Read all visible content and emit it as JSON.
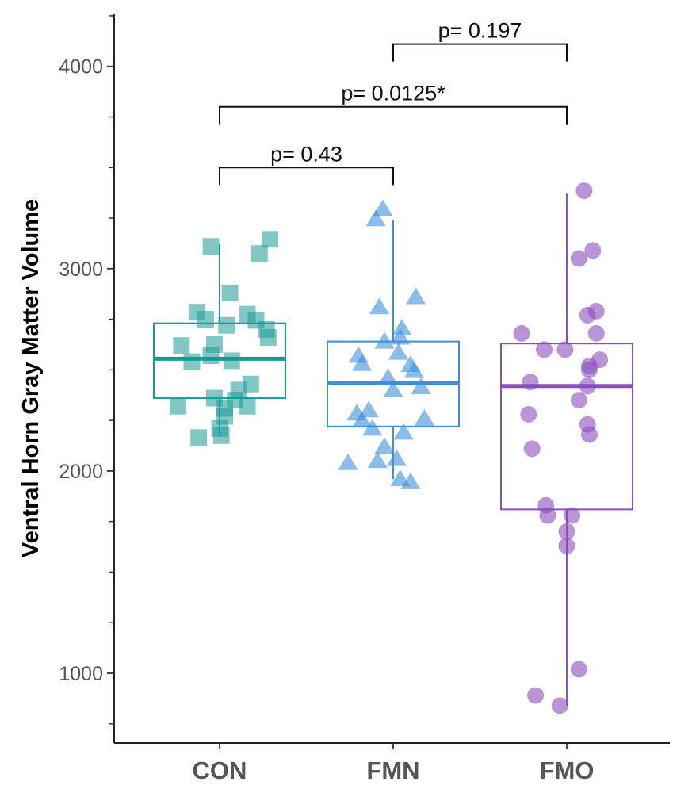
{
  "chart_data": {
    "type": "box",
    "title": "",
    "xlabel": "",
    "ylabel": "Ventral Horn Gray Matter Volume",
    "ylim": [
      670,
      4270
    ],
    "yticks": [
      1000,
      2000,
      3000,
      4000
    ],
    "yticks_minor": [
      750,
      1250,
      1500,
      1750,
      2250,
      2500,
      2750,
      3250,
      3500,
      3750,
      4250
    ],
    "categories": [
      "CON",
      "FMN",
      "FMO"
    ],
    "groups": [
      {
        "category": "CON",
        "color": "#1a9a96",
        "marker": "square",
        "box": {
          "whisker_low": 2170,
          "q1": 2360,
          "median": 2555,
          "q3": 2730,
          "whisker_high": 3120
        },
        "points": [
          {
            "x": 0.95,
            "y": 3110
          },
          {
            "x": 1.29,
            "y": 3145
          },
          {
            "x": 1.23,
            "y": 3075
          },
          {
            "x": 1.06,
            "y": 2880
          },
          {
            "x": 0.87,
            "y": 2785
          },
          {
            "x": 1.16,
            "y": 2775
          },
          {
            "x": 0.92,
            "y": 2750
          },
          {
            "x": 1.04,
            "y": 2720
          },
          {
            "x": 1.21,
            "y": 2745
          },
          {
            "x": 1.27,
            "y": 2700
          },
          {
            "x": 1.28,
            "y": 2660
          },
          {
            "x": 0.97,
            "y": 2625
          },
          {
            "x": 0.78,
            "y": 2620
          },
          {
            "x": 0.95,
            "y": 2570
          },
          {
            "x": 1.07,
            "y": 2545
          },
          {
            "x": 0.84,
            "y": 2540
          },
          {
            "x": 1.18,
            "y": 2430
          },
          {
            "x": 1.11,
            "y": 2400
          },
          {
            "x": 1.09,
            "y": 2350
          },
          {
            "x": 0.97,
            "y": 2360
          },
          {
            "x": 1.03,
            "y": 2310
          },
          {
            "x": 0.76,
            "y": 2320
          },
          {
            "x": 1.16,
            "y": 2320
          },
          {
            "x": 1.03,
            "y": 2270
          },
          {
            "x": 1.0,
            "y": 2210
          },
          {
            "x": 0.88,
            "y": 2165
          },
          {
            "x": 1.01,
            "y": 2175
          }
        ]
      },
      {
        "category": "FMN",
        "color": "#3d8fdc",
        "marker": "triangle",
        "box": {
          "whisker_low": 1960,
          "q1": 2220,
          "median": 2435,
          "q3": 2640,
          "whisker_high": 3240
        },
        "points": [
          {
            "x": 1.94,
            "y": 3295
          },
          {
            "x": 1.9,
            "y": 3245
          },
          {
            "x": 2.13,
            "y": 2860
          },
          {
            "x": 1.92,
            "y": 2810
          },
          {
            "x": 2.05,
            "y": 2705
          },
          {
            "x": 2.04,
            "y": 2660
          },
          {
            "x": 1.95,
            "y": 2640
          },
          {
            "x": 2.03,
            "y": 2585
          },
          {
            "x": 1.8,
            "y": 2570
          },
          {
            "x": 1.82,
            "y": 2530
          },
          {
            "x": 2.1,
            "y": 2525
          },
          {
            "x": 2.12,
            "y": 2495
          },
          {
            "x": 1.97,
            "y": 2460
          },
          {
            "x": 2.16,
            "y": 2415
          },
          {
            "x": 2.0,
            "y": 2400
          },
          {
            "x": 1.86,
            "y": 2300
          },
          {
            "x": 1.79,
            "y": 2285
          },
          {
            "x": 1.82,
            "y": 2250
          },
          {
            "x": 1.88,
            "y": 2210
          },
          {
            "x": 2.18,
            "y": 2260
          },
          {
            "x": 2.06,
            "y": 2190
          },
          {
            "x": 1.95,
            "y": 2120
          },
          {
            "x": 1.74,
            "y": 2040
          },
          {
            "x": 1.91,
            "y": 2050
          },
          {
            "x": 2.02,
            "y": 2060
          },
          {
            "x": 2.04,
            "y": 1960
          },
          {
            "x": 2.1,
            "y": 1945
          }
        ]
      },
      {
        "category": "FMO",
        "color": "#8a4fbe",
        "marker": "circle",
        "box": {
          "whisker_low": 840,
          "q1": 1810,
          "median": 2420,
          "q3": 2630,
          "whisker_high": 3370
        },
        "points": [
          {
            "x": 3.1,
            "y": 3385
          },
          {
            "x": 3.15,
            "y": 3090
          },
          {
            "x": 3.07,
            "y": 3050
          },
          {
            "x": 3.17,
            "y": 2790
          },
          {
            "x": 3.12,
            "y": 2770
          },
          {
            "x": 2.74,
            "y": 2680
          },
          {
            "x": 3.17,
            "y": 2680
          },
          {
            "x": 2.87,
            "y": 2600
          },
          {
            "x": 2.99,
            "y": 2600
          },
          {
            "x": 3.19,
            "y": 2550
          },
          {
            "x": 3.13,
            "y": 2520
          },
          {
            "x": 3.13,
            "y": 2500
          },
          {
            "x": 2.79,
            "y": 2440
          },
          {
            "x": 3.12,
            "y": 2420
          },
          {
            "x": 3.07,
            "y": 2350
          },
          {
            "x": 2.78,
            "y": 2280
          },
          {
            "x": 3.12,
            "y": 2230
          },
          {
            "x": 3.13,
            "y": 2180
          },
          {
            "x": 2.8,
            "y": 2110
          },
          {
            "x": 2.88,
            "y": 1830
          },
          {
            "x": 2.89,
            "y": 1780
          },
          {
            "x": 3.03,
            "y": 1780
          },
          {
            "x": 3.0,
            "y": 1700
          },
          {
            "x": 3.0,
            "y": 1630
          },
          {
            "x": 3.07,
            "y": 1020
          },
          {
            "x": 2.82,
            "y": 890
          },
          {
            "x": 2.96,
            "y": 840
          }
        ]
      }
    ],
    "comparisons": [
      {
        "from": "FMN",
        "to": "FMO",
        "label": "p= 0.197",
        "y": 4110
      },
      {
        "from": "CON",
        "to": "FMO",
        "label": "p= 0.0125*",
        "y": 3800
      },
      {
        "from": "CON",
        "to": "FMN",
        "label": "p= 0.43",
        "y": 3500
      }
    ],
    "grid": false,
    "legend": "none"
  }
}
